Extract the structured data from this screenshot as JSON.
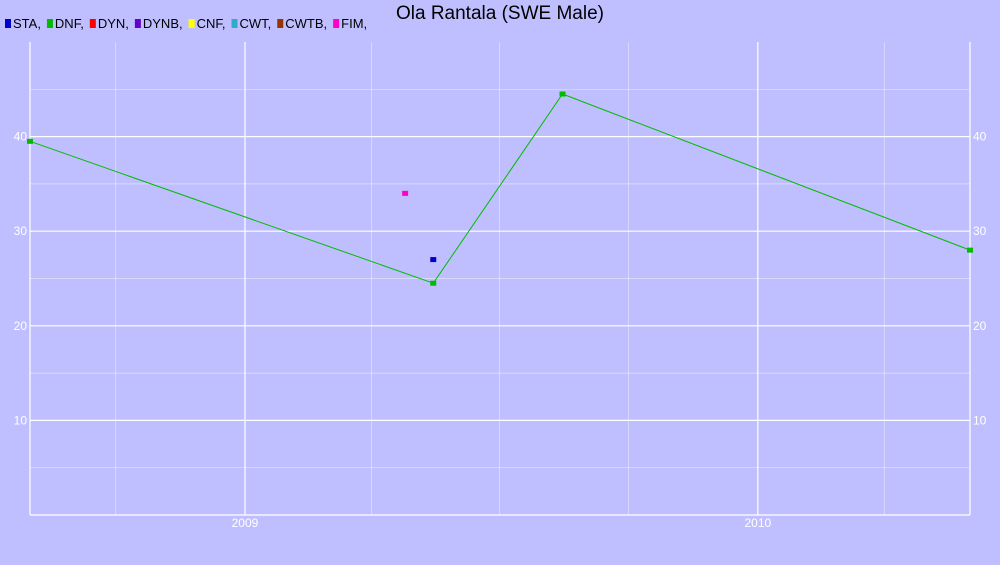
{
  "chart_data": {
    "type": "line",
    "title": "Ola Rantala (SWE Male)",
    "xlabel": "",
    "ylabel": "",
    "x_ticks": [
      "2009",
      "2010"
    ],
    "x_range": [
      "2008-08-01",
      "2010-06-01"
    ],
    "ylim": [
      0,
      50
    ],
    "y_ticks": [
      10,
      20,
      30,
      40
    ],
    "grid": true,
    "legend_position": "top-left",
    "legend": [
      {
        "label": "STA,",
        "color": "#0000cc"
      },
      {
        "label": "DNF,",
        "color": "#00bb00"
      },
      {
        "label": "DYN,",
        "color": "#ff0000"
      },
      {
        "label": "DYNB,",
        "color": "#6600cc"
      },
      {
        "label": "CNF,",
        "color": "#ffff00"
      },
      {
        "label": "CWT,",
        "color": "#33aacc"
      },
      {
        "label": "CWTB,",
        "color": "#993300"
      },
      {
        "label": "FIM,",
        "color": "#ff00cc"
      }
    ],
    "series": [
      {
        "name": "STA",
        "color": "#0000cc",
        "points": [
          {
            "x": "2009-05-15",
            "y": 27
          }
        ]
      },
      {
        "name": "DNF",
        "color": "#00bb00",
        "points": [
          {
            "x": "2008-08-01",
            "y": 39.5
          },
          {
            "x": "2009-05-15",
            "y": 24.5
          },
          {
            "x": "2009-08-15",
            "y": 44.5
          },
          {
            "x": "2010-06-01",
            "y": 28
          }
        ]
      },
      {
        "name": "FIM",
        "color": "#ff00cc",
        "points": [
          {
            "x": "2009-04-25",
            "y": 34
          }
        ]
      }
    ]
  }
}
